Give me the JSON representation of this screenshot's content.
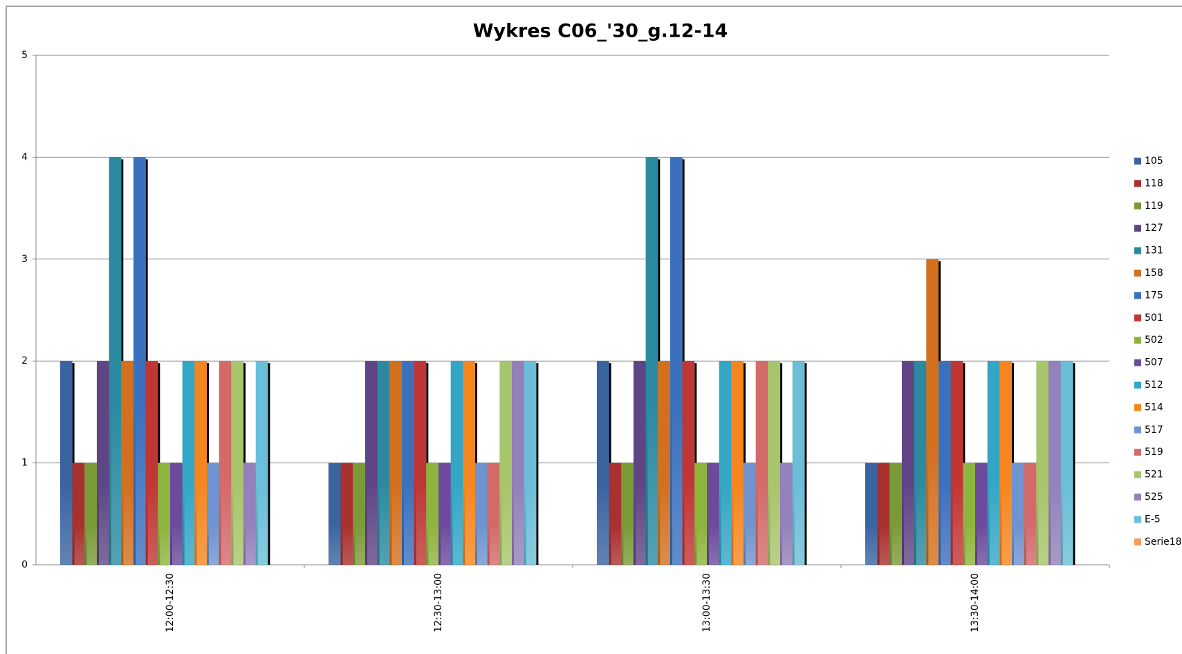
{
  "chart_data": {
    "type": "bar",
    "title": "Wykres C06_'30_g.12-14",
    "categories": [
      "12:00-12:30",
      "12:30-13:00",
      "13:00-13:30",
      "13:30-14:00"
    ],
    "series": [
      {
        "name": "105",
        "color": "#3a64a0",
        "values": [
          2,
          1,
          2,
          1
        ]
      },
      {
        "name": "118",
        "color": "#a8302e",
        "values": [
          1,
          1,
          1,
          1
        ]
      },
      {
        "name": "119",
        "color": "#7a9a38",
        "values": [
          1,
          1,
          1,
          1
        ]
      },
      {
        "name": "127",
        "color": "#5f4585",
        "values": [
          2,
          2,
          2,
          2
        ]
      },
      {
        "name": "131",
        "color": "#2b8aa0",
        "values": [
          4,
          2,
          4,
          2
        ]
      },
      {
        "name": "158",
        "color": "#d2701e",
        "values": [
          2,
          2,
          2,
          3
        ]
      },
      {
        "name": "175",
        "color": "#3b70bd",
        "values": [
          4,
          2,
          4,
          2
        ]
      },
      {
        "name": "501",
        "color": "#c03634",
        "values": [
          2,
          2,
          2,
          2
        ]
      },
      {
        "name": "502",
        "color": "#8db43c",
        "values": [
          1,
          1,
          1,
          1
        ]
      },
      {
        "name": "507",
        "color": "#6c4b9c",
        "values": [
          1,
          1,
          1,
          1
        ]
      },
      {
        "name": "512",
        "color": "#33a6c6",
        "values": [
          2,
          2,
          2,
          2
        ]
      },
      {
        "name": "514",
        "color": "#f5861f",
        "values": [
          2,
          2,
          2,
          2
        ]
      },
      {
        "name": "517",
        "color": "#6f93ce",
        "values": [
          1,
          1,
          1,
          1
        ]
      },
      {
        "name": "519",
        "color": "#d26a69",
        "values": [
          2,
          1,
          2,
          1
        ]
      },
      {
        "name": "521",
        "color": "#a7c56a",
        "values": [
          2,
          2,
          2,
          2
        ]
      },
      {
        "name": "525",
        "color": "#9480ba",
        "values": [
          1,
          2,
          1,
          2
        ]
      },
      {
        "name": "E-5",
        "color": "#6abed7",
        "values": [
          2,
          2,
          2,
          2
        ]
      },
      {
        "name": "Serie18",
        "color": "#f79c5a",
        "values": [
          0,
          0,
          0,
          0
        ]
      }
    ],
    "ylim": [
      0,
      5
    ],
    "yticks": [
      0,
      1,
      2,
      3,
      4,
      5
    ],
    "grid": true,
    "legend": "right"
  }
}
